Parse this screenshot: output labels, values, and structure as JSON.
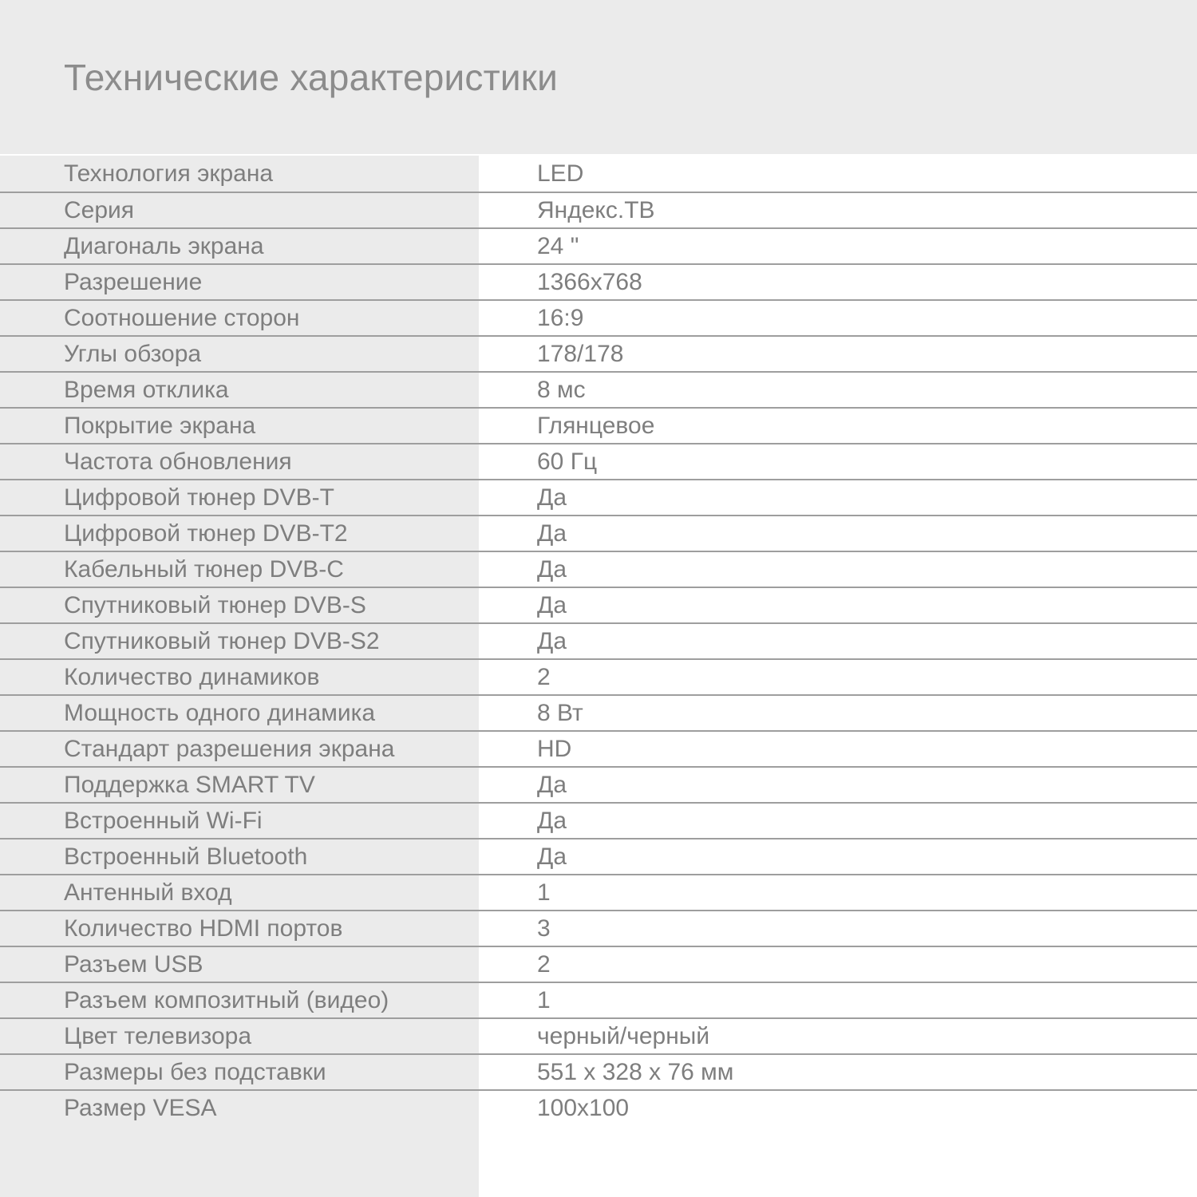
{
  "title": "Технические характеристики",
  "colors": {
    "header_background": "#ebebeb",
    "label_column_background": "#ebebeb",
    "value_column_background": "#ffffff",
    "divider": "#9e9e9e",
    "title_text": "#8c8c8c",
    "row_text": "#7e7e7e"
  },
  "specs": [
    {
      "label": "Технология экрана",
      "value": "LED"
    },
    {
      "label": "Серия",
      "value": "Яндекс.ТВ"
    },
    {
      "label": "Диагональ экрана",
      "value": "24 \""
    },
    {
      "label": "Разрешение",
      "value": "1366x768"
    },
    {
      "label": "Соотношение сторон",
      "value": "16:9"
    },
    {
      "label": "Углы обзора",
      "value": "178/178"
    },
    {
      "label": "Время отклика",
      "value": "8 мс"
    },
    {
      "label": "Покрытие экрана",
      "value": "Глянцевое"
    },
    {
      "label": "Частота обновления",
      "value": "60 Гц"
    },
    {
      "label": "Цифровой тюнер DVB-T",
      "value": "Да"
    },
    {
      "label": "Цифровой тюнер DVB-T2",
      "value": "Да"
    },
    {
      "label": "Кабельный тюнер DVB-C",
      "value": "Да"
    },
    {
      "label": "Спутниковый тюнер DVB-S",
      "value": "Да"
    },
    {
      "label": "Спутниковый тюнер DVB-S2",
      "value": "Да"
    },
    {
      "label": "Количество динамиков",
      "value": "2"
    },
    {
      "label": "Мощность одного динамика",
      "value": "8 Вт"
    },
    {
      "label": "Стандарт разрешения экрана",
      "value": "HD"
    },
    {
      "label": "Поддержка SMART TV",
      "value": "Да"
    },
    {
      "label": "Встроенный Wi-Fi",
      "value": "Да"
    },
    {
      "label": "Встроенный Bluetooth",
      "value": "Да"
    },
    {
      "label": "Антенный вход",
      "value": "1"
    },
    {
      "label": "Количество HDMI портов",
      "value": "3"
    },
    {
      "label": "Разъем USB",
      "value": "2"
    },
    {
      "label": "Разъем композитный (видео)",
      "value": "1"
    },
    {
      "label": "Цвет телевизора",
      "value": "черный/черный"
    },
    {
      "label": "Размеры без подставки",
      "value": "551 x 328 x 76 мм"
    },
    {
      "label": "Размер VESA",
      "value": "100x100"
    }
  ]
}
